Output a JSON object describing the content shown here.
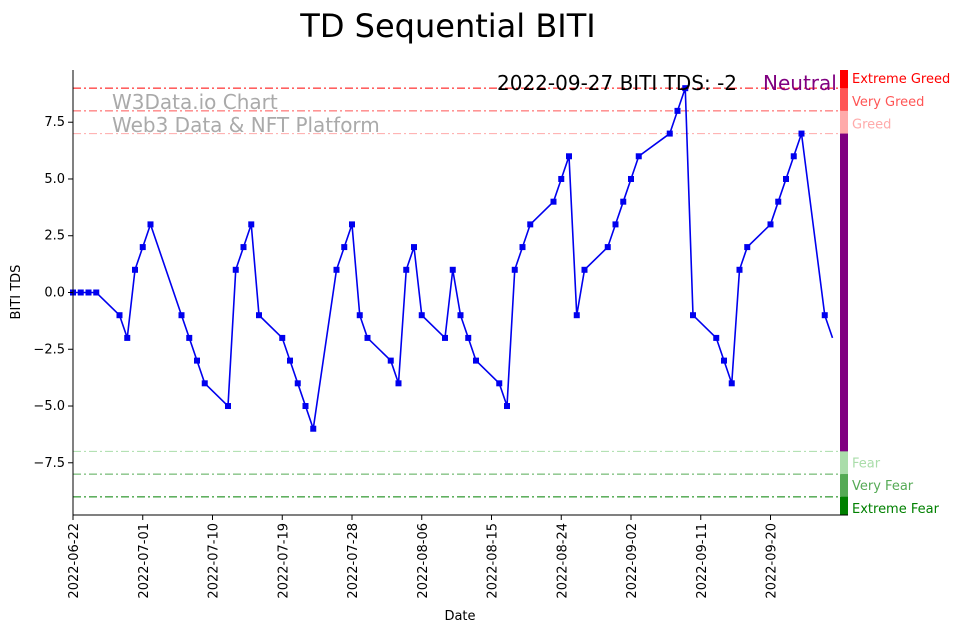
{
  "chart_data": {
    "type": "line",
    "title": "TD Sequential BITI",
    "xlabel": "Date",
    "ylabel": "BITI TDS",
    "ylim": [
      -9.8,
      9.8
    ],
    "xlim": [
      "2022-06-22",
      "2022-09-30"
    ],
    "yticks": [
      -7.5,
      -5.0,
      -2.5,
      0.0,
      2.5,
      5.0,
      7.5
    ],
    "ytick_labels": [
      "−7.5",
      "−5.0",
      "−2.5",
      "0.0",
      "2.5",
      "5.0",
      "7.5"
    ],
    "xticks": [
      "2022-06-22",
      "2022-07-01",
      "2022-07-10",
      "2022-07-19",
      "2022-07-28",
      "2022-08-06",
      "2022-08-15",
      "2022-08-24",
      "2022-09-02",
      "2022-09-11",
      "2022-09-20"
    ],
    "line_color": "#0000ee",
    "series": [
      {
        "name": "BITI TDS",
        "x": [
          "2022-06-22",
          "2022-06-23",
          "2022-06-24",
          "2022-06-25",
          "2022-06-28",
          "2022-06-29",
          "2022-06-30",
          "2022-07-01",
          "2022-07-02",
          "2022-07-06",
          "2022-07-07",
          "2022-07-08",
          "2022-07-09",
          "2022-07-12",
          "2022-07-13",
          "2022-07-14",
          "2022-07-15",
          "2022-07-16",
          "2022-07-19",
          "2022-07-20",
          "2022-07-21",
          "2022-07-22",
          "2022-07-23",
          "2022-07-26",
          "2022-07-27",
          "2022-07-28",
          "2022-07-29",
          "2022-07-30",
          "2022-08-02",
          "2022-08-03",
          "2022-08-04",
          "2022-08-05",
          "2022-08-06",
          "2022-08-09",
          "2022-08-10",
          "2022-08-11",
          "2022-08-12",
          "2022-08-13",
          "2022-08-16",
          "2022-08-17",
          "2022-08-18",
          "2022-08-19",
          "2022-08-20",
          "2022-08-23",
          "2022-08-24",
          "2022-08-25",
          "2022-08-26",
          "2022-08-27",
          "2022-08-30",
          "2022-08-31",
          "2022-09-01",
          "2022-09-02",
          "2022-09-03",
          "2022-09-07",
          "2022-09-08",
          "2022-09-09",
          "2022-09-10",
          "2022-09-13",
          "2022-09-14",
          "2022-09-15",
          "2022-09-16",
          "2022-09-17",
          "2022-09-20",
          "2022-09-21",
          "2022-09-22",
          "2022-09-23",
          "2022-09-24",
          "2022-09-27",
          "2022-09-28"
        ],
        "values": [
          0,
          0,
          0,
          0,
          -1,
          -2,
          1,
          2,
          3,
          -1,
          -2,
          -3,
          -4,
          -5,
          1,
          2,
          3,
          -1,
          -2,
          -3,
          -4,
          -5,
          -6,
          1,
          2,
          3,
          -1,
          -2,
          -3,
          -4,
          1,
          2,
          -1,
          -2,
          1,
          -1,
          -2,
          -3,
          -4,
          -5,
          1,
          2,
          3,
          4,
          5,
          6,
          -1,
          1,
          2,
          3,
          4,
          5,
          6,
          7,
          8,
          9,
          -1,
          -2,
          -3,
          -4,
          1,
          2,
          3,
          4,
          5,
          6,
          7,
          -1,
          -2
        ]
      }
    ],
    "thresholds": [
      {
        "label": "Extreme Greed",
        "value": 9,
        "color": "#ff0000"
      },
      {
        "label": "Very Greed",
        "value": 8,
        "color": "#ff5555"
      },
      {
        "label": "Greed",
        "value": 7,
        "color": "#ffaaaa"
      },
      {
        "label": "Fear",
        "value": -7,
        "color": "#aaddaa"
      },
      {
        "label": "Very Fear",
        "value": -8,
        "color": "#55aa55"
      },
      {
        "label": "Extreme Fear",
        "value": -9,
        "color": "#008000"
      }
    ],
    "neutral_color": "#800080",
    "annotation": {
      "text": "2022-09-27 BITI TDS: -2",
      "status": "Neutral",
      "status_color": "#800080"
    },
    "watermark": [
      "W3Data.io Chart",
      "Web3 Data & NFT Platform"
    ]
  }
}
